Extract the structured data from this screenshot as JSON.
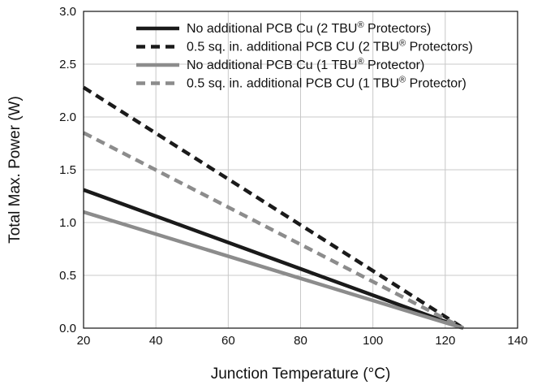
{
  "chart_data": {
    "type": "line",
    "title": "",
    "xlabel": "Junction Temperature (°C)",
    "ylabel": "Total Max. Power (W)",
    "xlim": [
      20,
      140
    ],
    "ylim": [
      0.0,
      3.0
    ],
    "x_ticks": [
      "20",
      "40",
      "60",
      "80",
      "100",
      "120",
      "140"
    ],
    "y_ticks": [
      "0.0",
      "0.5",
      "1.0",
      "1.5",
      "2.0",
      "2.5",
      "3.0"
    ],
    "grid": true,
    "legend_position": "top-right",
    "series": [
      {
        "name": "No additional PCB Cu (2 TBU® Protectors)",
        "label_main": "No additional PCB Cu (2 TBU",
        "label_tail": " Protectors)",
        "color": "#1a1a1a",
        "dash": "solid",
        "x": [
          20,
          125
        ],
        "y": [
          1.31,
          0.0
        ]
      },
      {
        "name": "0.5 sq. in. additional PCB CU (2 TBU® Protectors)",
        "label_main": "0.5 sq. in. additional PCB CU (2 TBU",
        "label_tail": " Protectors)",
        "color": "#1a1a1a",
        "dash": "dashed",
        "x": [
          20,
          125
        ],
        "y": [
          2.28,
          0.0
        ]
      },
      {
        "name": "No additional PCB Cu (1 TBU® Protector)",
        "label_main": "No additional PCB Cu (1 TBU",
        "label_tail": " Protector)",
        "color": "#8c8c8c",
        "dash": "solid",
        "x": [
          20,
          125
        ],
        "y": [
          1.1,
          0.0
        ]
      },
      {
        "name": "0.5 sq. in. additional PCB CU (1 TBU® Protector)",
        "label_main": "0.5 sq. in. additional PCB CU (1 TBU",
        "label_tail": " Protector)",
        "color": "#8c8c8c",
        "dash": "dashed",
        "x": [
          20,
          125
        ],
        "y": [
          1.85,
          0.0
        ]
      }
    ],
    "registered_mark": "®"
  }
}
